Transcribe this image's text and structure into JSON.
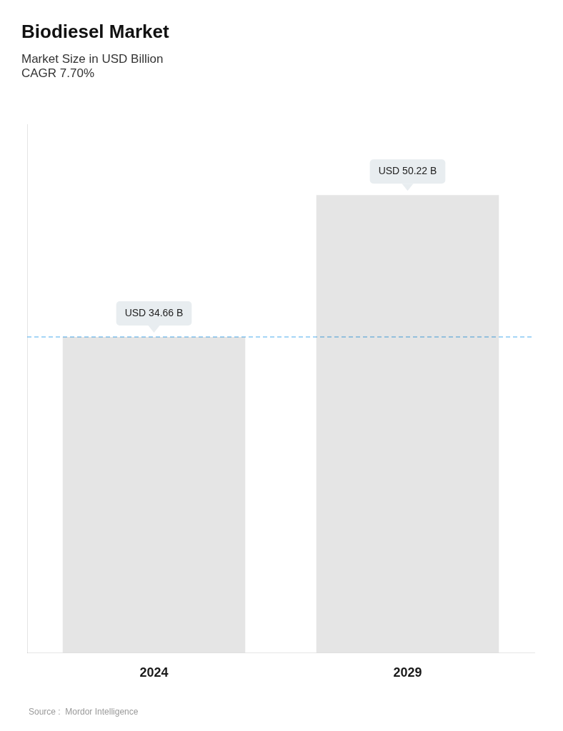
{
  "chart_data": {
    "type": "bar",
    "title": "Biodiesel Market",
    "subtitle": "Market Size in USD Billion",
    "annotations": [
      "CAGR 7.70%",
      "Source :  Mordor Intelligence"
    ],
    "categories": [
      "2024",
      "2029"
    ],
    "values": [
      34.66,
      50.22
    ],
    "value_labels": [
      "USD 34.66 B",
      "USD 50.22 B"
    ],
    "data_labels": true,
    "ylim": [
      0,
      58
    ],
    "grid": false,
    "tick_labels": "x"
  }
}
